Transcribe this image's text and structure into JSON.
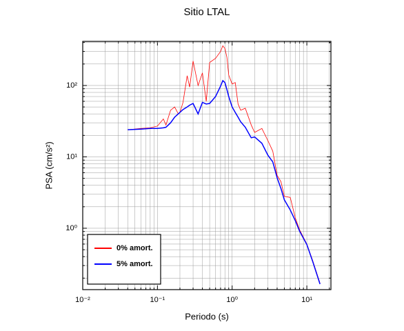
{
  "chart_data": {
    "type": "line",
    "title": "Sitio LTAL",
    "xlabel": "Periodo (s)",
    "ylabel": "PSA (cm/s²)",
    "x": [
      0.04,
      0.06,
      0.08,
      0.1,
      0.12,
      0.13,
      0.15,
      0.17,
      0.19,
      0.2,
      0.22,
      0.25,
      0.27,
      0.3,
      0.35,
      0.4,
      0.45,
      0.5,
      0.6,
      0.7,
      0.75,
      0.8,
      0.85,
      0.9,
      1.0,
      1.1,
      1.2,
      1.3,
      1.5,
      1.8,
      2.0,
      2.5,
      3.0,
      3.5,
      4.0,
      4.5,
      5.0,
      6.0,
      7.0,
      8.0,
      10,
      12,
      15
    ],
    "series": [
      {
        "name": "0% amort.",
        "color": "#ff0000",
        "values": [
          24,
          25,
          25.5,
          27,
          34,
          28,
          45,
          50,
          40,
          42,
          58,
          137,
          95,
          220,
          100,
          150,
          60,
          210,
          240,
          300,
          360,
          330,
          250,
          140,
          105,
          110,
          55,
          45,
          48,
          28,
          22,
          25,
          17,
          12,
          5.5,
          4.5,
          2.8,
          2.7,
          1.4,
          0.95,
          0.6,
          0.35,
          0.17
        ]
      },
      {
        "name": "5% amort.",
        "color": "#0000ff",
        "values": [
          24,
          24.5,
          25,
          25,
          25.5,
          26,
          30,
          36,
          40,
          42,
          46,
          50,
          53,
          56,
          40,
          58,
          55,
          56,
          70,
          98,
          117,
          110,
          88,
          70,
          50,
          42,
          36,
          31,
          26,
          18.5,
          19,
          15.5,
          10.6,
          8.5,
          5.1,
          3.6,
          2.5,
          1.8,
          1.28,
          0.91,
          0.59,
          0.34,
          0.165
        ]
      }
    ],
    "xscale": "log",
    "yscale": "log",
    "xlim": [
      0.01,
      21
    ],
    "ylim": [
      0.138,
      415
    ],
    "xticks": [
      {
        "value": 0.01,
        "label": "10⁻²"
      },
      {
        "value": 0.1,
        "label": "10⁻¹"
      },
      {
        "value": 1,
        "label": "10⁰"
      },
      {
        "value": 10,
        "label": "10¹"
      }
    ],
    "yticks": [
      {
        "value": 1,
        "label": "10⁰"
      },
      {
        "value": 10,
        "label": "10¹"
      },
      {
        "value": 100,
        "label": "10²"
      }
    ],
    "grid": true,
    "legend": "lower left"
  }
}
